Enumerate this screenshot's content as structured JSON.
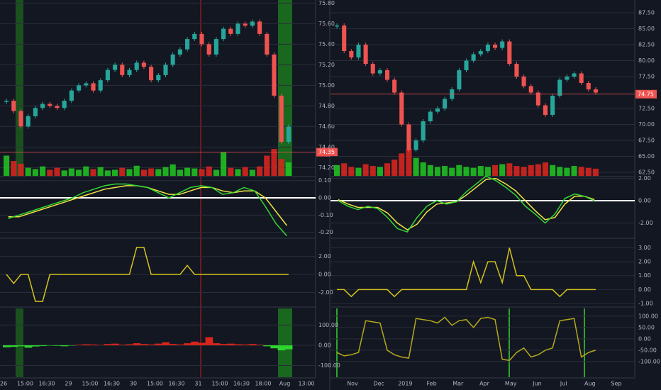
{
  "chart_data": [
    {
      "type": "candlestick",
      "up_color": "#26a69a",
      "down_color": "#ef5350",
      "volume_up_color": "#22c922",
      "volume_down_color": "#e0261f",
      "values": [
        74.85,
        74.75,
        74.6,
        74.7,
        74.78,
        74.82,
        74.8,
        74.78,
        74.85,
        74.95,
        75.0,
        75.02,
        74.95,
        75.05,
        75.15,
        75.2,
        75.1,
        75.15,
        75.22,
        75.18,
        75.05,
        75.1,
        75.2,
        75.3,
        75.35,
        75.45,
        75.5,
        75.4,
        75.3,
        75.45,
        75.55,
        75.5,
        75.6,
        75.58,
        75.62,
        75.5,
        75.3,
        74.9,
        74.45,
        74.6
      ],
      "volume": [
        30,
        22,
        18,
        12,
        10,
        14,
        9,
        12,
        8,
        11,
        9,
        14,
        10,
        13,
        8,
        9,
        12,
        10,
        15,
        9,
        11,
        10,
        13,
        17,
        9,
        12,
        11,
        10,
        14,
        9,
        35,
        12,
        10,
        13,
        9,
        14,
        30,
        40,
        25,
        20
      ],
      "last_price": 74.35,
      "ylim": [
        74.12,
        75.83
      ],
      "yticks": [
        {
          "value": 74.2,
          "label": "74.20"
        },
        {
          "value": 74.4,
          "label": "74.40"
        },
        {
          "value": 74.6,
          "label": "74.60"
        },
        {
          "value": 74.8,
          "label": "74.80"
        },
        {
          "value": 75,
          "label": "75.00"
        },
        {
          "value": 75.2,
          "label": "75.20"
        },
        {
          "value": 75.4,
          "label": "75.40"
        },
        {
          "value": 75.6,
          "label": "75.60"
        },
        {
          "value": 75.8,
          "label": "75.80"
        }
      ],
      "x_labels": [
        "26",
        "15:00",
        "16:30",
        "29",
        "15:00",
        "16:30",
        "30",
        "15:00",
        "16:30",
        "31",
        "15:00",
        "16:30",
        "18:00",
        "Aug",
        "13:00"
      ]
    },
    {
      "type": "line",
      "series": [
        {
          "color": "#f0e442",
          "values": [
            -0.11,
            -0.11,
            -0.09,
            -0.07,
            -0.05,
            -0.03,
            -0.01,
            0.01,
            0.03,
            0.05,
            0.06,
            0.07,
            0.07,
            0.06,
            0.04,
            0.02,
            0.02,
            0.04,
            0.06,
            0.06,
            0.04,
            0.03,
            0.04,
            0.04,
            0.0,
            -0.08,
            -0.16
          ]
        },
        {
          "color": "#32d732",
          "values": [
            -0.12,
            -0.1,
            -0.08,
            -0.06,
            -0.04,
            -0.02,
            0.0,
            0.03,
            0.05,
            0.07,
            0.08,
            0.08,
            0.07,
            0.06,
            0.03,
            0.0,
            0.03,
            0.06,
            0.07,
            0.06,
            0.02,
            0.03,
            0.06,
            0.04,
            -0.05,
            -0.15,
            -0.22
          ]
        }
      ],
      "ylim": [
        -0.23,
        0.119
      ],
      "yticks": [
        {
          "value": -0.2,
          "label": "-0.20"
        },
        {
          "value": -0.1,
          "label": "-0.10"
        },
        {
          "value": 0,
          "label": "0.00"
        },
        {
          "value": 0.1,
          "label": "0.10"
        }
      ]
    },
    {
      "type": "line",
      "series": [
        {
          "color": "#d4c21a",
          "values": [
            0,
            -1,
            0,
            0,
            -3,
            -3,
            0,
            0,
            0,
            0,
            0,
            0,
            0,
            0,
            0,
            0,
            0,
            0,
            3,
            3,
            0,
            0,
            0,
            0,
            0,
            1,
            0,
            0,
            0,
            0,
            0,
            0,
            0,
            0,
            0,
            0,
            0,
            0,
            0,
            0
          ]
        }
      ],
      "ylim": [
        -3.54,
        3.86
      ],
      "yticks": [
        {
          "value": -2,
          "label": "-2.00"
        },
        {
          "value": 0,
          "label": "0.00"
        },
        {
          "value": 2,
          "label": "2.00"
        }
      ]
    },
    {
      "type": "bars",
      "pos_color": "#d9251c",
      "neg_color": "#2ed52e",
      "values": [
        -10,
        -8,
        -5,
        -12,
        -6,
        -4,
        -2,
        -3,
        -5,
        -2,
        3,
        5,
        4,
        2,
        6,
        8,
        3,
        5,
        10,
        6,
        4,
        8,
        15,
        6,
        4,
        10,
        18,
        12,
        40,
        10,
        6,
        8,
        5,
        4,
        6,
        3,
        -5,
        -15,
        -25,
        -20
      ],
      "ylim": [
        -158,
        182
      ],
      "yticks": [
        {
          "value": -100,
          "label": "-100.00"
        },
        {
          "value": 0,
          "label": "0.00"
        },
        {
          "value": 100,
          "label": "100.00"
        }
      ]
    },
    {
      "type": "candlestick",
      "up_color": "#26a69a",
      "down_color": "#ef5350",
      "volume_up_color": "#22c922",
      "volume_down_color": "#e0261f",
      "values": [
        85.5,
        81.5,
        80.5,
        82.5,
        79.5,
        78,
        78.5,
        77,
        75,
        70,
        66,
        67.5,
        70.5,
        72,
        72.5,
        74,
        75.5,
        78.5,
        80,
        81,
        81.5,
        82.5,
        82,
        83,
        79.5,
        77.5,
        76,
        75,
        73,
        71.5,
        74.5,
        77,
        77.5,
        78,
        76.5,
        75.5,
        75
      ],
      "volume": [
        12,
        14,
        10,
        9,
        13,
        11,
        10,
        14,
        18,
        25,
        30,
        20,
        15,
        12,
        10,
        11,
        9,
        12,
        10,
        9,
        11,
        10,
        12,
        13,
        14,
        11,
        10,
        12,
        13,
        15,
        12,
        10,
        9,
        11,
        10,
        9,
        8
      ],
      "last_price": 74.75,
      "ylim": [
        61.95,
        89.5
      ],
      "yticks": [
        {
          "value": 62.5,
          "label": "62.50"
        },
        {
          "value": 65,
          "label": "65.00"
        },
        {
          "value": 67.5,
          "label": "67.50"
        },
        {
          "value": 70,
          "label": "70.00"
        },
        {
          "value": 72.5,
          "label": "72.50"
        },
        {
          "value": 77.5,
          "label": "77.50"
        },
        {
          "value": 80,
          "label": "80.00"
        },
        {
          "value": 82.5,
          "label": "82.50"
        },
        {
          "value": 85,
          "label": "85.00"
        },
        {
          "value": 87.5,
          "label": "87.50"
        }
      ],
      "x_labels": [
        "Nov",
        "Dec",
        "2019",
        "Feb",
        "Mar",
        "Apr",
        "May",
        "Jun",
        "Jul",
        "Aug",
        "Sep"
      ]
    },
    {
      "type": "line",
      "series": [
        {
          "color": "#f0e442",
          "values": [
            0.1,
            -0.3,
            -0.6,
            -0.6,
            -0.6,
            -1.1,
            -2.0,
            -2.6,
            -2.1,
            -1.0,
            -0.3,
            -0.2,
            -0.1,
            0.5,
            1.2,
            1.9,
            2.0,
            1.5,
            0.9,
            0.0,
            -0.9,
            -1.7,
            -1.5,
            -0.3,
            0.4,
            0.4,
            0.1
          ]
        },
        {
          "color": "#32d732",
          "values": [
            0.0,
            -0.5,
            -0.8,
            -0.5,
            -0.7,
            -1.5,
            -2.5,
            -2.8,
            -1.5,
            -0.5,
            0.0,
            -0.3,
            -0.1,
            0.8,
            1.5,
            2.2,
            1.8,
            1.2,
            0.5,
            -0.5,
            -1.2,
            -2.0,
            -1.2,
            0.2,
            0.6,
            0.4,
            0.0
          ]
        }
      ],
      "ylim": [
        -3.3,
        2.1
      ],
      "yticks": [
        {
          "value": -2,
          "label": "-2.00"
        },
        {
          "value": 0,
          "label": "0.00"
        },
        {
          "value": 2,
          "label": "2.00"
        }
      ]
    },
    {
      "type": "line",
      "series": [
        {
          "color": "#d4c21a",
          "values": [
            0,
            0,
            -0.5,
            0,
            0,
            0,
            0,
            0,
            -0.5,
            0,
            0,
            0,
            0,
            0,
            0,
            0,
            0,
            0,
            0,
            2,
            0.5,
            2,
            2,
            0.5,
            3,
            1,
            1,
            0,
            0,
            0,
            0,
            -0.5,
            0,
            0,
            0,
            0,
            0
          ]
        }
      ],
      "ylim": [
        -1.2,
        3.58
      ],
      "yticks": [
        {
          "value": -1,
          "label": "-1.00"
        },
        {
          "value": 0,
          "label": "0.00"
        },
        {
          "value": 1,
          "label": "1.00"
        },
        {
          "value": 2,
          "label": "2.00"
        },
        {
          "value": 3,
          "label": "3.00"
        }
      ]
    },
    {
      "type": "line",
      "series": [
        {
          "color": "#b5a91b",
          "values": [
            -60,
            -75,
            -70,
            -60,
            80,
            75,
            70,
            -50,
            -70,
            -80,
            -85,
            90,
            85,
            80,
            70,
            95,
            60,
            80,
            85,
            50,
            90,
            95,
            85,
            -90,
            -95,
            -60,
            -40,
            -80,
            -70,
            -50,
            -40,
            80,
            85,
            90,
            -80,
            -60,
            -50
          ]
        }
      ],
      "ylim": [
        -169,
        134
      ],
      "yticks": [
        {
          "value": -100,
          "label": "-100.00"
        },
        {
          "value": -50,
          "label": "-50.00"
        },
        {
          "value": 0,
          "label": "0.00"
        },
        {
          "value": 50,
          "label": "50.00"
        },
        {
          "value": 100,
          "label": "100.00"
        }
      ]
    }
  ]
}
